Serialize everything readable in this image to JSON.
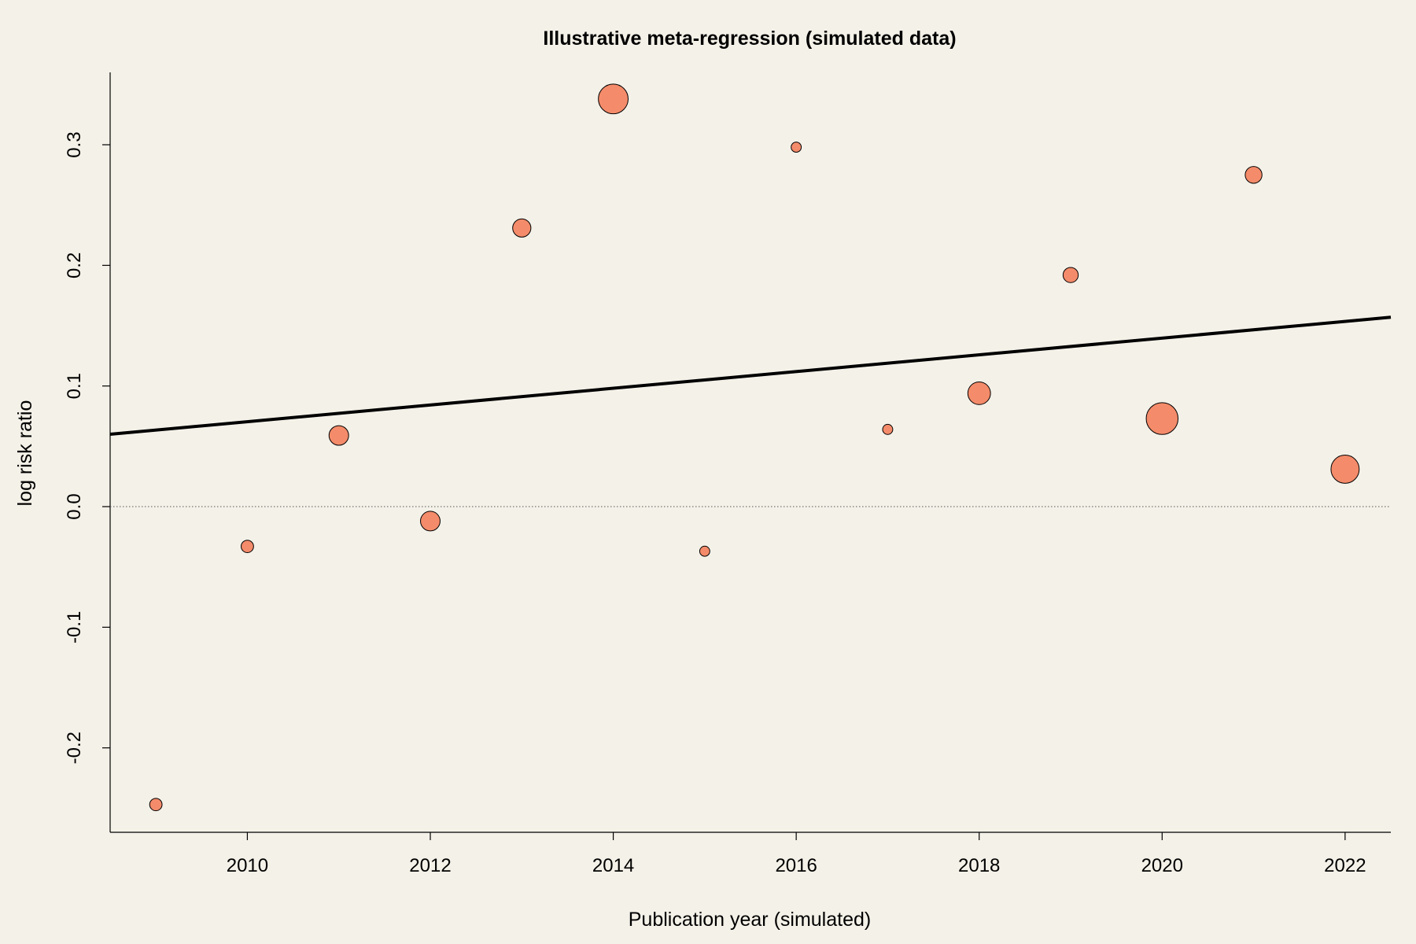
{
  "chart_data": {
    "type": "scatter",
    "title": "Illustrative meta-regression (simulated data)",
    "xlabel": "Publication year (simulated)",
    "ylabel": "log risk ratio",
    "xlim": [
      2008.5,
      2022.5
    ],
    "ylim": [
      -0.27,
      0.36
    ],
    "x_ticks": [
      2010,
      2012,
      2014,
      2016,
      2018,
      2020,
      2022
    ],
    "y_ticks": [
      -0.2,
      -0.1,
      0.0,
      0.1,
      0.2,
      0.3
    ],
    "y_tick_labels": [
      "-0.2",
      "-0.1",
      "0.0",
      "0.1",
      "0.2",
      "0.3"
    ],
    "points": [
      {
        "x": 2009,
        "y": -0.247,
        "weight": 1.2
      },
      {
        "x": 2010,
        "y": -0.033,
        "weight": 1.2
      },
      {
        "x": 2011,
        "y": 0.059,
        "weight": 3.0
      },
      {
        "x": 2012,
        "y": -0.012,
        "weight": 3.0
      },
      {
        "x": 2013,
        "y": 0.231,
        "weight": 2.6
      },
      {
        "x": 2014,
        "y": 0.338,
        "weight": 6.9
      },
      {
        "x": 2015,
        "y": -0.037,
        "weight": 0.8
      },
      {
        "x": 2016,
        "y": 0.298,
        "weight": 0.8
      },
      {
        "x": 2017,
        "y": 0.064,
        "weight": 0.8
      },
      {
        "x": 2018,
        "y": 0.094,
        "weight": 4.0
      },
      {
        "x": 2019,
        "y": 0.192,
        "weight": 1.8
      },
      {
        "x": 2020,
        "y": 0.073,
        "weight": 7.9
      },
      {
        "x": 2021,
        "y": 0.275,
        "weight": 2.2
      },
      {
        "x": 2022,
        "y": 0.031,
        "weight": 6.2
      }
    ],
    "regression_line": {
      "x": [
        2008.5,
        2022.5
      ],
      "y": [
        0.06,
        0.157
      ]
    },
    "reference_line_y": 0.0,
    "point_color": "#f48b6a",
    "point_stroke": "#000000",
    "line_color": "#000000",
    "background": "#f4f1e8",
    "grid": false,
    "legend": "none"
  }
}
